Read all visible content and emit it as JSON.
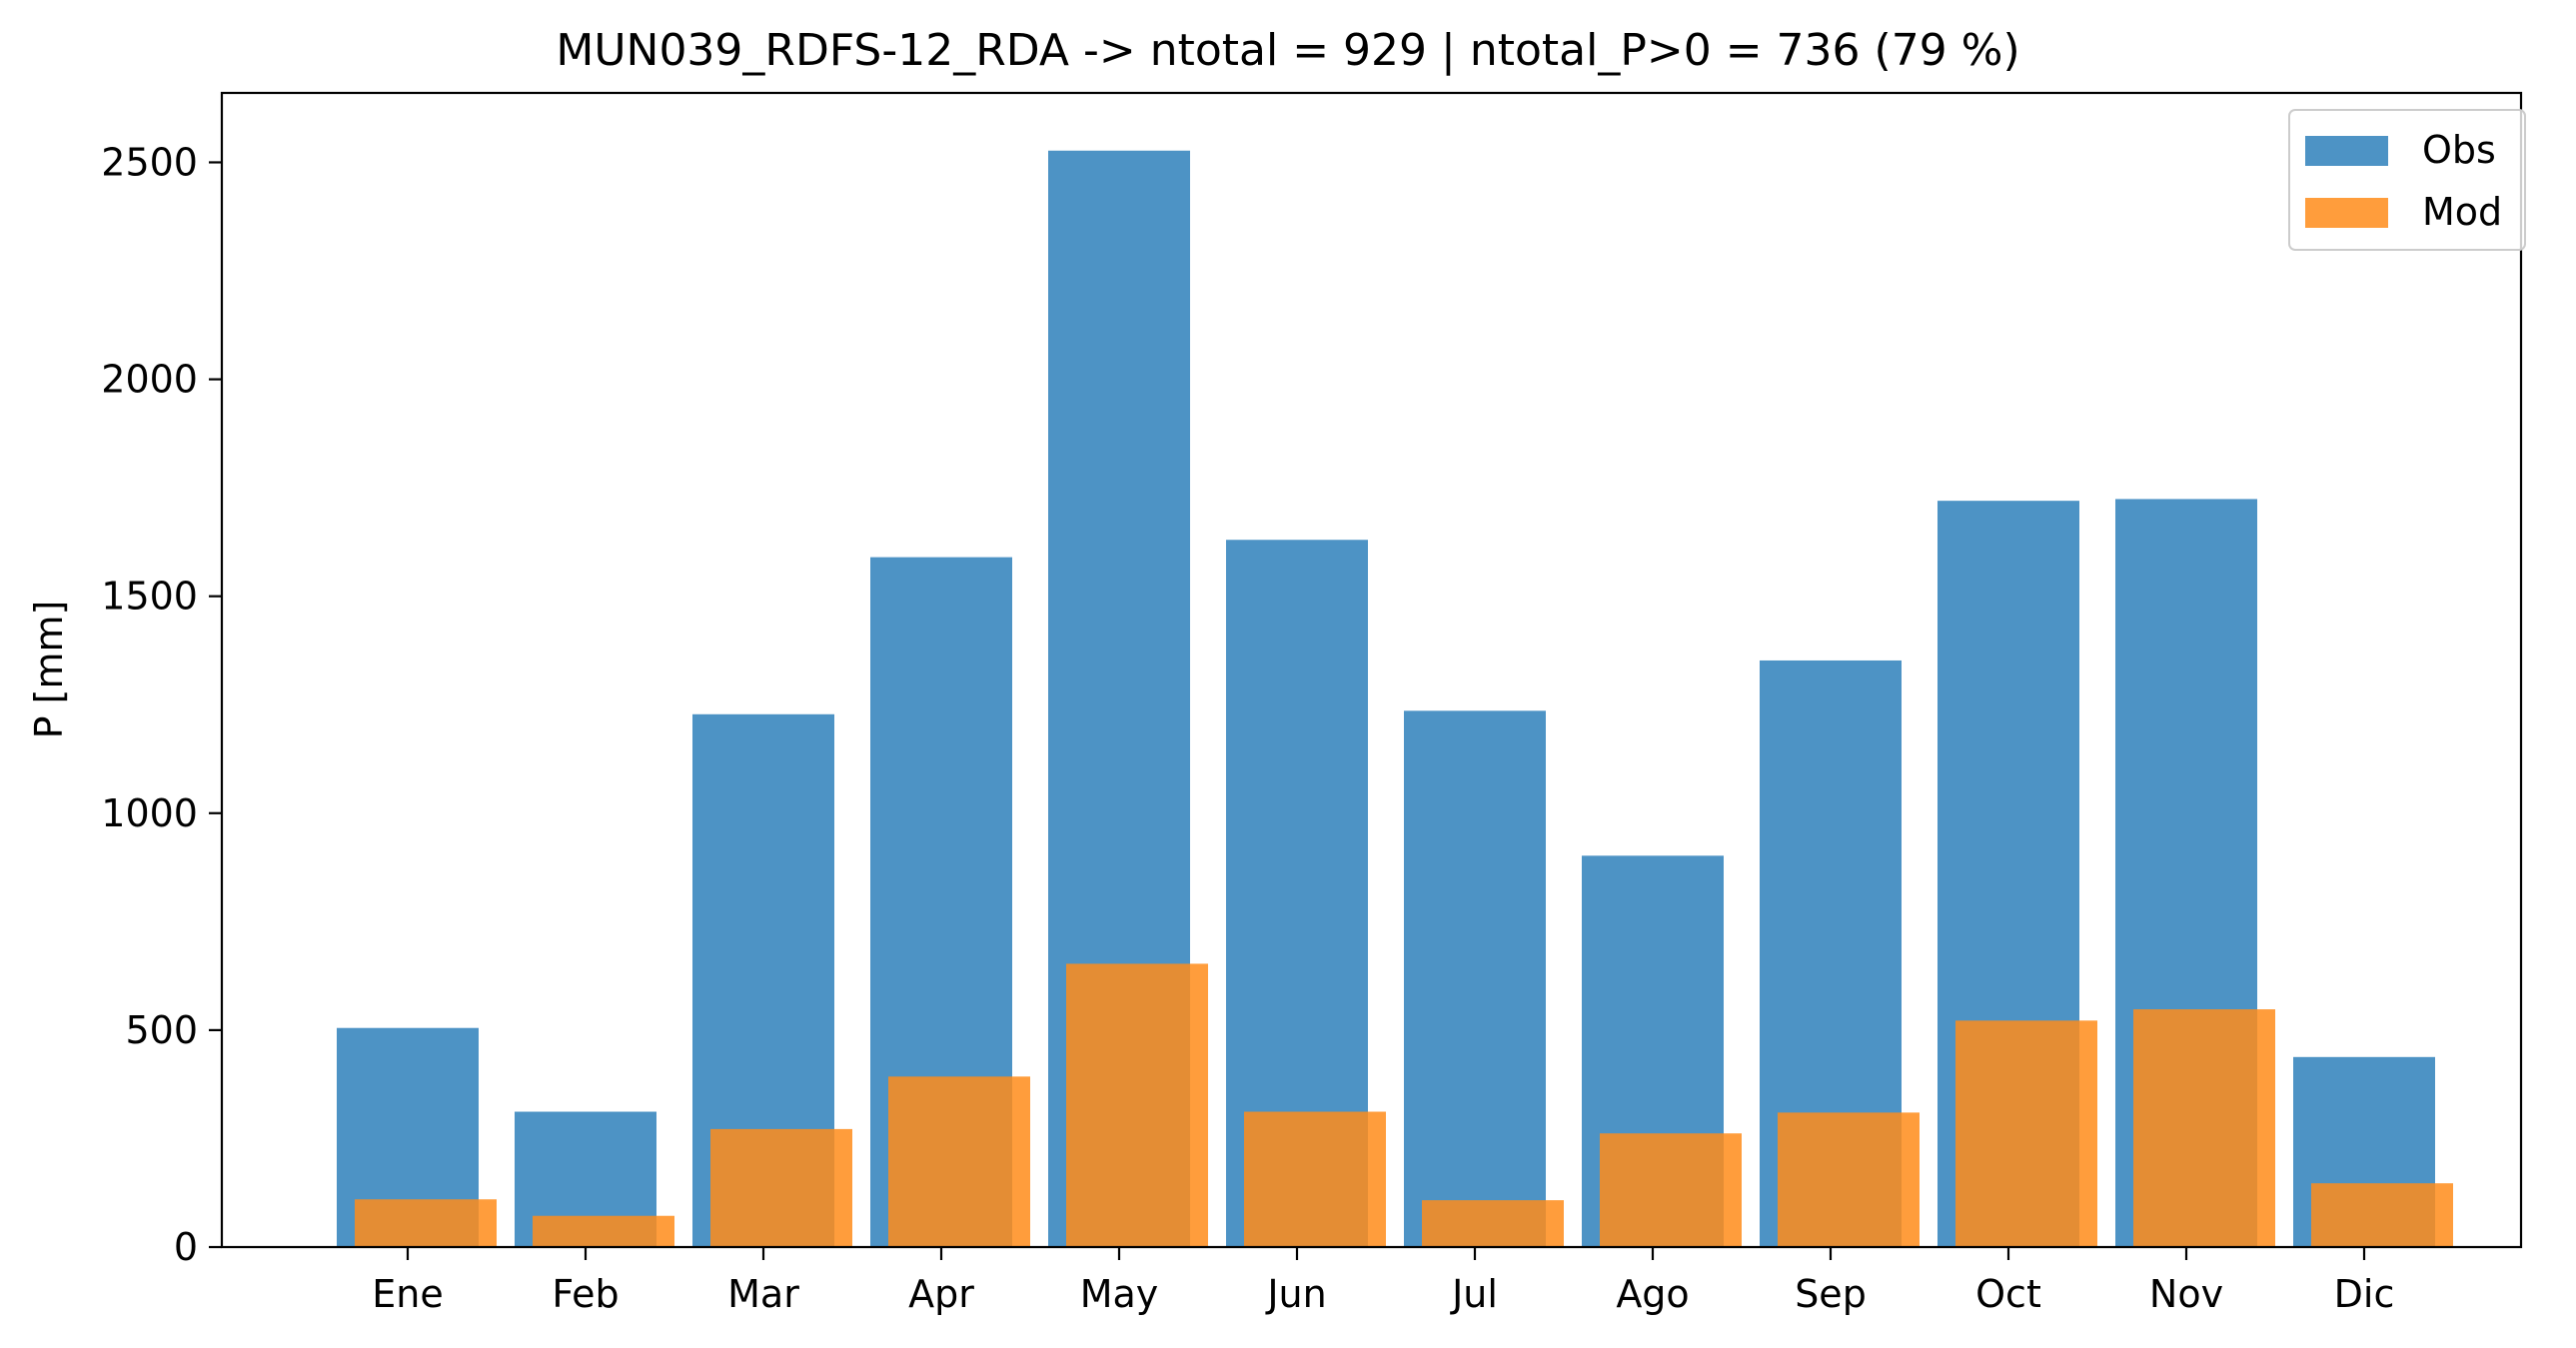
{
  "chart_data": {
    "type": "bar",
    "title": "MUN039_RDFS-12_RDA -> ntotal = 929 | ntotal_P>0 = 736 (79 %)",
    "xlabel": "",
    "ylabel": "P [mm]",
    "ylim": [
      0,
      2660
    ],
    "yticks": [
      0,
      500,
      1000,
      1500,
      2000,
      2500
    ],
    "categories": [
      "Ene",
      "Feb",
      "Mar",
      "Apr",
      "May",
      "Jun",
      "Jul",
      "Ago",
      "Sep",
      "Oct",
      "Nov",
      "Dic"
    ],
    "series": [
      {
        "name": "Obs",
        "color": "#4d93c5",
        "values": [
          505,
          312,
          1228,
          1590,
          2527,
          1630,
          1236,
          902,
          1352,
          1720,
          1724,
          438
        ]
      },
      {
        "name": "Mod",
        "color": "#ff8c1a",
        "opacity": 0.85,
        "values": [
          110,
          72,
          272,
          393,
          653,
          312,
          108,
          262,
          310,
          522,
          548,
          147
        ]
      }
    ],
    "grid": false,
    "legend_position": "top-right"
  }
}
